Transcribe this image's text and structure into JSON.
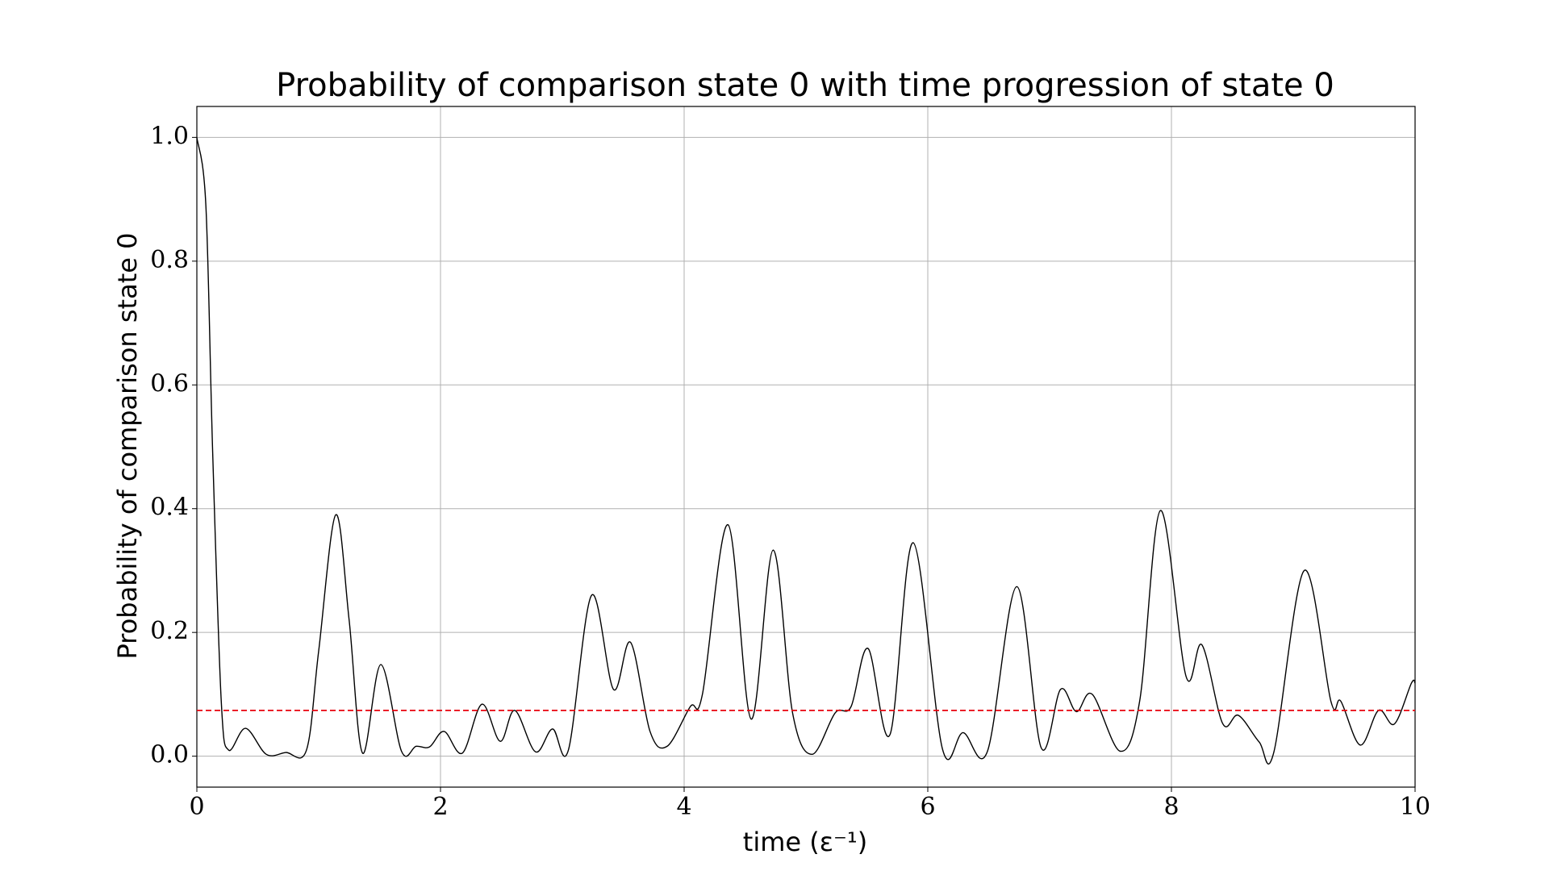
{
  "chart_data": {
    "type": "line",
    "title": "Probability of comparison state 0 with time progression of state 0",
    "x_label": "time (ε⁻¹)",
    "y_label": "Probability of comparison state 0",
    "xlim": [
      0,
      10
    ],
    "ylim": [
      -0.05,
      1.05
    ],
    "xticks": [
      0,
      2,
      4,
      6,
      8,
      10
    ],
    "yticks": [
      {
        "value": 0,
        "label": "0.0"
      },
      {
        "value": 0.2,
        "label": "0.2"
      },
      {
        "value": 0.4,
        "label": "0.4"
      },
      {
        "value": 0.6,
        "label": "0.6"
      },
      {
        "value": 0.8,
        "label": "0.8"
      },
      {
        "value": 1,
        "label": "1.0"
      }
    ],
    "grid": true,
    "hline": {
      "value": 0.074,
      "color": "#e8000b"
    },
    "series": [
      {
        "color": "#000000",
        "x": [
          0,
          0.074,
          0.13,
          0.2,
          0.26,
          0.4,
          0.57,
          0.73,
          0.9,
          1.0,
          1.14,
          1.25,
          1.36,
          1.51,
          1.68,
          1.8,
          1.91,
          2.03,
          2.18,
          2.34,
          2.49,
          2.61,
          2.78,
          2.92,
          3.05,
          3.24,
          3.42,
          3.56,
          3.72,
          3.86,
          4.05,
          4.15,
          4.36,
          4.55,
          4.73,
          4.89,
          5.05,
          5.24,
          5.37,
          5.51,
          5.69,
          5.88,
          6.12,
          6.29,
          6.49,
          6.73,
          6.93,
          7.09,
          7.22,
          7.35,
          7.58,
          7.74,
          7.91,
          8.12,
          8.25,
          8.42,
          8.55,
          8.72,
          8.84,
          9.09,
          9.31,
          9.39,
          9.55,
          9.7,
          9.83,
          9.97,
          10
        ],
        "values": [
          1.0,
          0.89,
          0.49,
          0.09,
          0.01,
          0.045,
          0.003,
          0.006,
          0.01,
          0.17,
          0.39,
          0.22,
          0.005,
          0.148,
          0.008,
          0.016,
          0.015,
          0.04,
          0.005,
          0.084,
          0.024,
          0.074,
          0.007,
          0.044,
          0.01,
          0.26,
          0.108,
          0.184,
          0.04,
          0.016,
          0.08,
          0.1,
          0.374,
          0.06,
          0.333,
          0.07,
          0.003,
          0.07,
          0.08,
          0.174,
          0.035,
          0.345,
          0.012,
          0.038,
          0.008,
          0.274,
          0.014,
          0.108,
          0.072,
          0.1,
          0.008,
          0.09,
          0.397,
          0.129,
          0.18,
          0.053,
          0.066,
          0.023,
          0.006,
          0.3,
          0.088,
          0.089,
          0.018,
          0.074,
          0.052,
          0.118,
          0.118
        ]
      }
    ]
  }
}
